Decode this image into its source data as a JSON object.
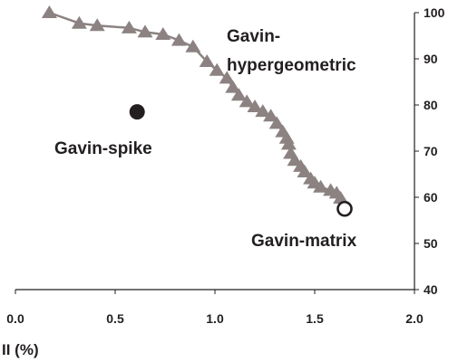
{
  "chart_data": {
    "type": "scatter",
    "xlabel": "II (%)",
    "ylabel": "",
    "xlim": [
      0.0,
      2.0
    ],
    "ylim": [
      40,
      100
    ],
    "x_ticks": [
      "0.0",
      "0.5",
      "1.0",
      "1.5",
      "2.0"
    ],
    "x_tick_values": [
      0.0,
      0.5,
      1.0,
      1.5,
      2.0
    ],
    "y_ticks": [
      "40",
      "50",
      "60",
      "70",
      "80",
      "90",
      "100"
    ],
    "y_tick_values": [
      40,
      50,
      60,
      70,
      80,
      90,
      100
    ],
    "y_axis_side": "right",
    "grid": false,
    "series": [
      {
        "name": "Gavin-hypergeometric",
        "marker": "triangle",
        "line": true,
        "color": "#8c8282",
        "points": [
          {
            "x": 0.17,
            "y": 100.0
          },
          {
            "x": 0.32,
            "y": 97.7
          },
          {
            "x": 0.41,
            "y": 97.2
          },
          {
            "x": 0.57,
            "y": 96.7
          },
          {
            "x": 0.65,
            "y": 95.8
          },
          {
            "x": 0.74,
            "y": 95.3
          },
          {
            "x": 0.82,
            "y": 94.0
          },
          {
            "x": 0.89,
            "y": 92.6
          },
          {
            "x": 0.96,
            "y": 89.4
          },
          {
            "x": 1.01,
            "y": 87.5
          },
          {
            "x": 1.06,
            "y": 85.8
          },
          {
            "x": 1.09,
            "y": 83.8
          },
          {
            "x": 1.12,
            "y": 82.1
          },
          {
            "x": 1.16,
            "y": 80.7
          },
          {
            "x": 1.2,
            "y": 79.6
          },
          {
            "x": 1.24,
            "y": 78.6
          },
          {
            "x": 1.28,
            "y": 77.6
          },
          {
            "x": 1.31,
            "y": 76.0
          },
          {
            "x": 1.34,
            "y": 74.2
          },
          {
            "x": 1.36,
            "y": 72.8
          },
          {
            "x": 1.37,
            "y": 71.5
          },
          {
            "x": 1.38,
            "y": 69.5
          },
          {
            "x": 1.4,
            "y": 68.0
          },
          {
            "x": 1.43,
            "y": 66.7
          },
          {
            "x": 1.45,
            "y": 65.5
          },
          {
            "x": 1.48,
            "y": 64.0
          },
          {
            "x": 1.5,
            "y": 63.1
          },
          {
            "x": 1.53,
            "y": 62.2
          },
          {
            "x": 1.58,
            "y": 61.5
          },
          {
            "x": 1.61,
            "y": 60.9
          },
          {
            "x": 1.63,
            "y": 59.8
          }
        ]
      },
      {
        "name": "Gavin-spike",
        "marker": "filled-circle",
        "line": false,
        "color": "#231f20",
        "points": [
          {
            "x": 0.61,
            "y": 78.5
          }
        ]
      },
      {
        "name": "Gavin-matrix",
        "marker": "open-circle",
        "line": false,
        "color": "#231f20",
        "points": [
          {
            "x": 1.65,
            "y": 57.5
          }
        ]
      }
    ],
    "annotations": [
      {
        "text": "Gavin-",
        "series": "Gavin-hypergeometric"
      },
      {
        "text": "hypergeometric",
        "series": "Gavin-hypergeometric"
      },
      {
        "text": "Gavin-spike",
        "series": "Gavin-spike"
      },
      {
        "text": "Gavin-matrix",
        "series": "Gavin-matrix"
      }
    ]
  }
}
